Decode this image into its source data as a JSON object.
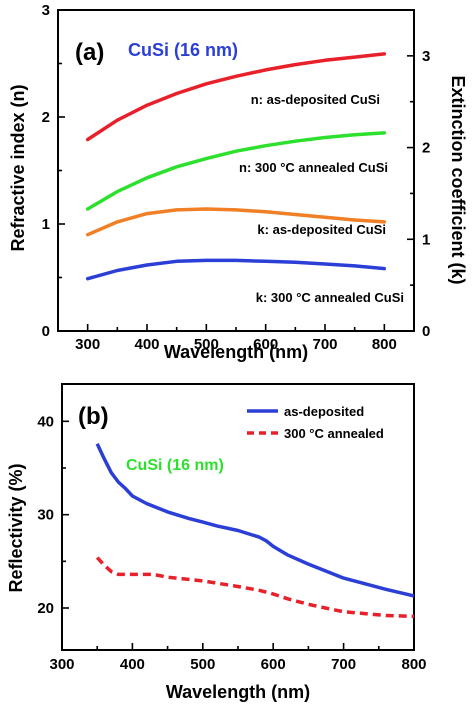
{
  "chart_data": [
    {
      "type": "line",
      "panel_label": "(a)",
      "title": "CuSi (16 nm)",
      "title_color": "#2b3fd6",
      "xlabel": "Wavelength (nm)",
      "ylabel": "Refractive index (n)",
      "y2label": "Extinction coefficient (k)",
      "xlim": [
        250,
        850
      ],
      "ylim": [
        0,
        3
      ],
      "y2lim": [
        0,
        3.5
      ],
      "xticks": [
        300,
        400,
        500,
        600,
        700,
        800
      ],
      "yticks": [
        0,
        1,
        2,
        3
      ],
      "y2ticks": [
        0,
        1,
        2,
        3
      ],
      "grid": false,
      "series": [
        {
          "name": "n: as-deposited CuSi",
          "axis": "left",
          "color": "#e8202a",
          "x": [
            300,
            350,
            400,
            450,
            500,
            550,
            600,
            650,
            700,
            750,
            800
          ],
          "y": [
            1.79,
            1.97,
            2.11,
            2.22,
            2.31,
            2.38,
            2.44,
            2.49,
            2.53,
            2.56,
            2.59
          ]
        },
        {
          "name": "n: 300 °C annealed CuSi",
          "axis": "right",
          "color": "#2ee02e",
          "x": [
            300,
            350,
            400,
            450,
            500,
            550,
            600,
            650,
            700,
            750,
            800
          ],
          "y": [
            1.33,
            1.52,
            1.67,
            1.79,
            1.88,
            1.96,
            2.02,
            2.07,
            2.11,
            2.14,
            2.16
          ]
        },
        {
          "name": "k: as-deposited CuSi",
          "axis": "right",
          "color": "#f07f25",
          "x": [
            300,
            350,
            400,
            450,
            500,
            550,
            600,
            650,
            700,
            750,
            800
          ],
          "y": [
            1.05,
            1.19,
            1.28,
            1.32,
            1.33,
            1.32,
            1.3,
            1.27,
            1.24,
            1.21,
            1.19
          ]
        },
        {
          "name": "k: 300 °C annealed CuSi",
          "axis": "right",
          "color": "#2b3fd6",
          "x": [
            300,
            350,
            400,
            450,
            500,
            550,
            600,
            650,
            700,
            750,
            800
          ],
          "y": [
            0.57,
            0.66,
            0.72,
            0.76,
            0.77,
            0.77,
            0.76,
            0.75,
            0.73,
            0.71,
            0.68
          ]
        }
      ],
      "annotations": [
        "n: as-deposited CuSi",
        "n: 300 °C annealed CuSi",
        "k: as-deposited CuSi",
        "k: 300 °C annealed CuSi"
      ]
    },
    {
      "type": "line",
      "panel_label": "(b)",
      "title": "CuSi (16 nm)",
      "title_color": "#2ee02e",
      "xlabel": "Wavelength (nm)",
      "ylabel": "Reflectivity (%)",
      "xlim": [
        300,
        800
      ],
      "ylim": [
        15.5,
        44
      ],
      "xticks": [
        300,
        400,
        500,
        600,
        700,
        800
      ],
      "yticks": [
        20,
        30,
        40
      ],
      "grid": false,
      "legend": "top-right",
      "series": [
        {
          "name": "as-deposited",
          "color": "#2b3fd6",
          "dash": "solid",
          "x": [
            350,
            360,
            370,
            380,
            390,
            400,
            420,
            450,
            480,
            500,
            520,
            550,
            580,
            590,
            600,
            620,
            650,
            680,
            700,
            730,
            760,
            800
          ],
          "y": [
            37.6,
            36.0,
            34.5,
            33.5,
            32.8,
            32.0,
            31.2,
            30.3,
            29.6,
            29.2,
            28.8,
            28.3,
            27.6,
            27.2,
            26.6,
            25.7,
            24.7,
            23.8,
            23.2,
            22.6,
            22.0,
            21.3
          ]
        },
        {
          "name": "300 °C annealed",
          "color": "#e8202a",
          "dash": "dashed",
          "x": [
            350,
            360,
            370,
            380,
            400,
            430,
            450,
            500,
            550,
            580,
            600,
            620,
            650,
            680,
            700,
            730,
            760,
            800
          ],
          "y": [
            25.4,
            24.6,
            23.9,
            23.6,
            23.6,
            23.6,
            23.3,
            22.9,
            22.3,
            21.9,
            21.5,
            21.0,
            20.4,
            19.9,
            19.6,
            19.4,
            19.2,
            19.1
          ]
        }
      ]
    }
  ]
}
